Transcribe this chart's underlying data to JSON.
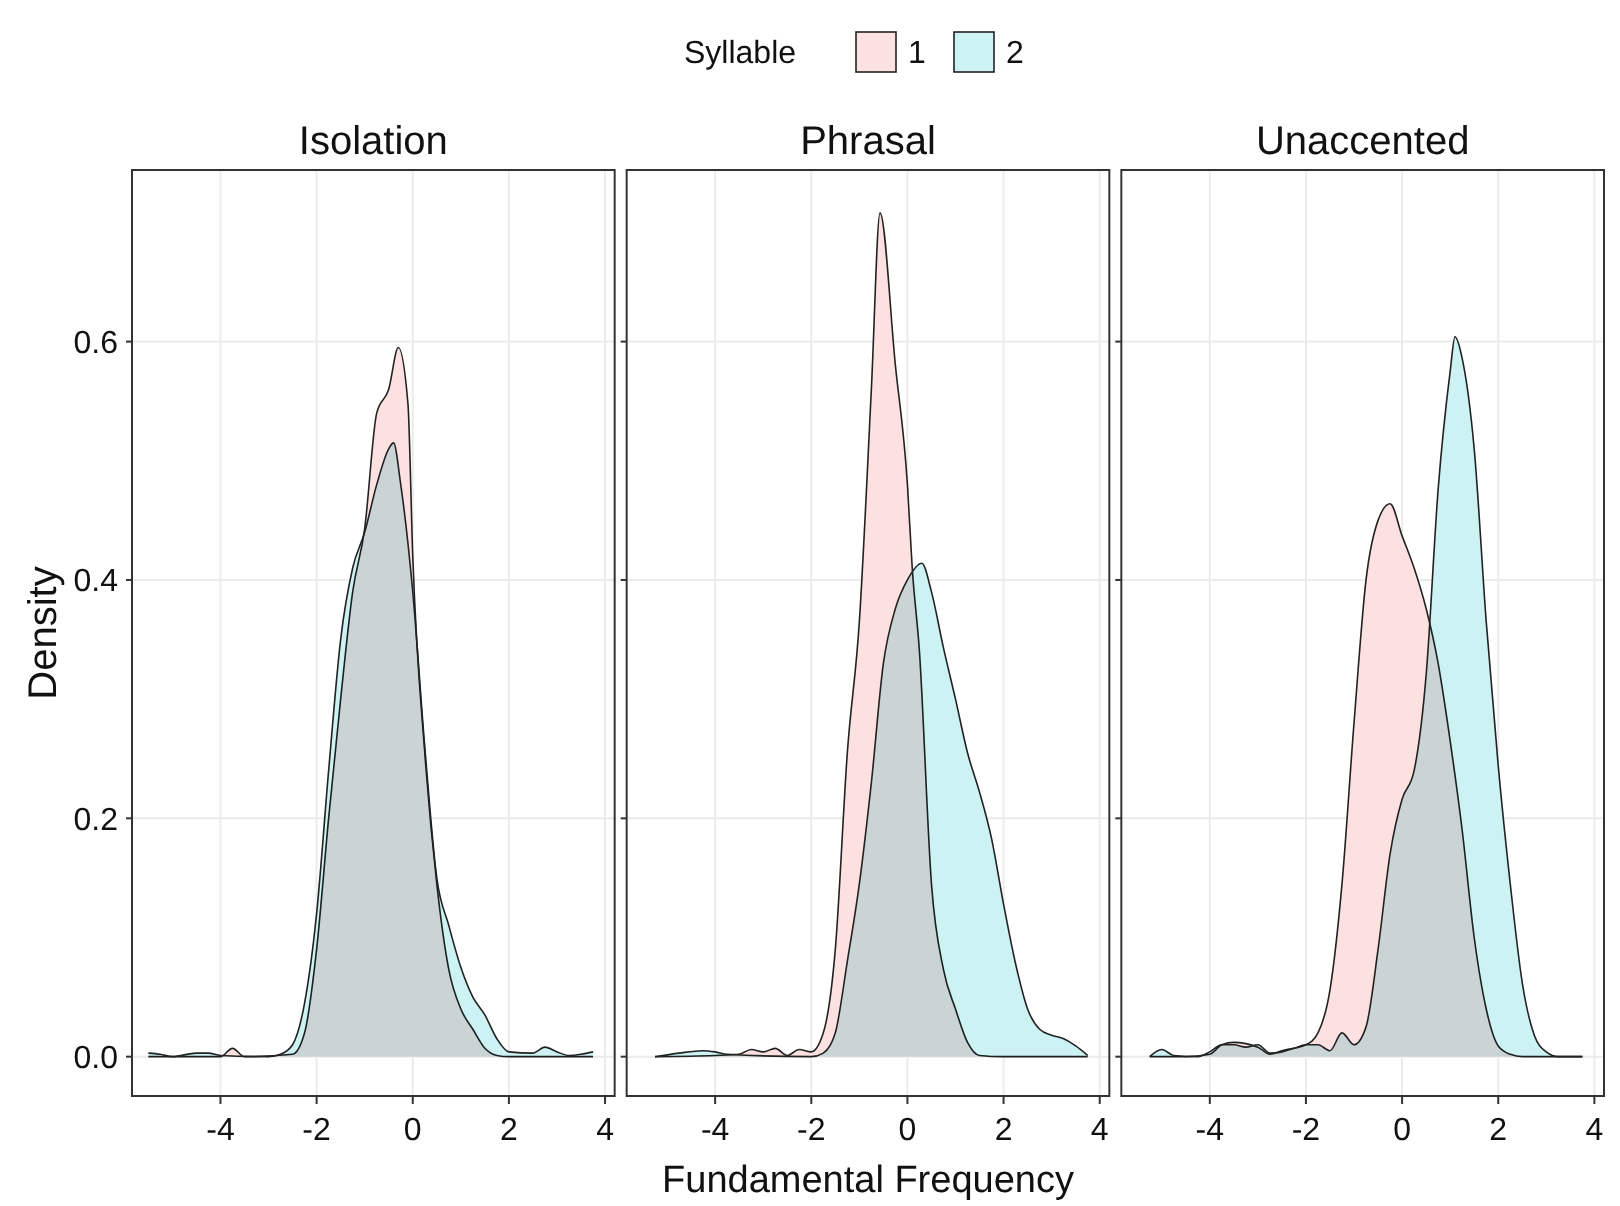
{
  "chart_data": [
    {
      "type": "area",
      "title": "Isolation",
      "ylabel": "Density",
      "legend_title": "Syllable",
      "legend": "top",
      "grid": true,
      "xlim": [
        -5.84,
        4.2
      ],
      "xticks": [
        -4,
        -2,
        0,
        2,
        4
      ],
      "ylim": [
        -0.033,
        0.744
      ],
      "yticks": [
        {
          "value": 0,
          "label": "0.0"
        },
        0.2,
        0.4,
        0.6
      ],
      "series": [
        {
          "name": "1",
          "color": "#fde0e0",
          "x": [
            -5.5,
            -4,
            -3.75,
            -3.5,
            -2.5,
            -2.25,
            -2,
            -1.75,
            -1.5,
            -1.25,
            -1,
            -0.75,
            -0.5,
            -0.3,
            -0.1,
            0,
            0.25,
            0.5,
            0.75,
            1,
            1.25,
            1.5,
            1.75,
            2,
            3.75
          ],
          "values": [
            0,
            0,
            0.007,
            0,
            0.002,
            0.02,
            0.09,
            0.2,
            0.3,
            0.39,
            0.443,
            0.54,
            0.56,
            0.595,
            0.548,
            0.42,
            0.255,
            0.145,
            0.073,
            0.04,
            0.023,
            0.007,
            0.001,
            0,
            0
          ]
        },
        {
          "name": "2",
          "color": "#ccf2f3",
          "x": [
            -5.5,
            -5.25,
            -5,
            -4.5,
            -4.25,
            -4,
            -3,
            -2.75,
            -2.5,
            -2.25,
            -2,
            -1.75,
            -1.5,
            -1.25,
            -1,
            -0.75,
            -0.5,
            -0.4,
            -0.25,
            0,
            0.25,
            0.5,
            0.75,
            1,
            1.25,
            1.5,
            1.75,
            2,
            2.5,
            2.75,
            3,
            3.25,
            3.5,
            3.75
          ],
          "values": [
            0.003,
            0.002,
            0,
            0.003,
            0.003,
            0.001,
            0,
            0.002,
            0.01,
            0.045,
            0.12,
            0.24,
            0.35,
            0.41,
            0.44,
            0.48,
            0.51,
            0.515,
            0.48,
            0.39,
            0.26,
            0.15,
            0.11,
            0.075,
            0.05,
            0.035,
            0.015,
            0.004,
            0.003,
            0.008,
            0.004,
            0.001,
            0.002,
            0.004
          ]
        }
      ]
    },
    {
      "type": "area",
      "title": "Phrasal",
      "xlabel": "Fundamental Frequency",
      "grid": true,
      "tick_labels": "x",
      "xlim": [
        -5.84,
        4.2
      ],
      "xticks": [
        -4,
        -2,
        0,
        2,
        4
      ],
      "ylim": [
        -0.033,
        0.744
      ],
      "yticks": [
        0,
        0.2,
        0.4,
        0.6
      ],
      "series": [
        {
          "color": "#fde0e0",
          "x": [
            -5.25,
            -4,
            -3.5,
            -3.25,
            -3,
            -2.75,
            -2.5,
            -2.25,
            -2,
            -1.75,
            -1.5,
            -1.25,
            -1,
            -0.75,
            -0.57,
            -0.25,
            0,
            0.1,
            0.25,
            0.5,
            0.75,
            1,
            1.25,
            1.5,
            2,
            3.75
          ],
          "values": [
            0,
            0.001,
            0.002,
            0.006,
            0.004,
            0.007,
            0.001,
            0.006,
            0.004,
            0.02,
            0.09,
            0.255,
            0.365,
            0.56,
            0.708,
            0.58,
            0.48,
            0.41,
            0.34,
            0.145,
            0.073,
            0.04,
            0.012,
            0.001,
            0,
            0
          ]
        },
        {
          "color": "#ccf2f3",
          "x": [
            -5.25,
            -4.75,
            -4.25,
            -4,
            -3.75,
            -2,
            -1.75,
            -1.5,
            -1.25,
            -1,
            -0.75,
            -0.5,
            -0.25,
            0,
            0.3,
            0.5,
            0.75,
            1,
            1.25,
            1.5,
            1.75,
            2,
            2.25,
            2.5,
            2.75,
            3,
            3.25,
            3.5,
            3.75
          ],
          "values": [
            0,
            0.003,
            0.005,
            0.004,
            0.002,
            0,
            0.003,
            0.02,
            0.08,
            0.145,
            0.23,
            0.33,
            0.376,
            0.4,
            0.414,
            0.39,
            0.343,
            0.3,
            0.255,
            0.222,
            0.183,
            0.128,
            0.078,
            0.04,
            0.023,
            0.018,
            0.015,
            0.009,
            0.001
          ]
        }
      ]
    },
    {
      "type": "area",
      "title": "Unaccented",
      "grid": true,
      "tick_labels": "x",
      "xlim": [
        -5.84,
        4.2
      ],
      "xticks": [
        -4,
        -2,
        0,
        2,
        4
      ],
      "ylim": [
        -0.033,
        0.744
      ],
      "yticks": [
        0,
        0.2,
        0.4,
        0.6
      ],
      "series": [
        {
          "color": "#fde0e0",
          "x": [
            -5.25,
            -4.5,
            -4,
            -3.75,
            -3.5,
            -3,
            -2.75,
            -2.5,
            -2,
            -1.75,
            -1.5,
            -1.25,
            -1,
            -0.75,
            -0.5,
            -0.25,
            0,
            0.25,
            0.5,
            0.75,
            1,
            1.25,
            1.5,
            1.75,
            2,
            2.25,
            2.5,
            3.75
          ],
          "values": [
            0,
            0,
            0.002,
            0.01,
            0.012,
            0.008,
            0.002,
            0.005,
            0.01,
            0.02,
            0.056,
            0.145,
            0.28,
            0.4,
            0.45,
            0.464,
            0.437,
            0.41,
            0.376,
            0.33,
            0.265,
            0.19,
            0.1,
            0.04,
            0.009,
            0.002,
            0,
            0
          ]
        },
        {
          "color": "#ccf2f3",
          "x": [
            -5.25,
            -5,
            -4.75,
            -4.25,
            -4,
            -3.75,
            -3.5,
            -3.25,
            -3,
            -2.75,
            -2.5,
            -2.25,
            -2,
            -1.75,
            -1.5,
            -1.25,
            -1,
            -0.75,
            -0.5,
            -0.25,
            0,
            0.25,
            0.5,
            0.75,
            1,
            1.1,
            1.25,
            1.5,
            1.75,
            2,
            2.25,
            2.5,
            2.75,
            3,
            3.25,
            3.75
          ],
          "values": [
            0,
            0.006,
            0.001,
            0,
            0.004,
            0.01,
            0.01,
            0.008,
            0.01,
            0.003,
            0.004,
            0.007,
            0.01,
            0.01,
            0.005,
            0.02,
            0.01,
            0.025,
            0.09,
            0.17,
            0.216,
            0.24,
            0.32,
            0.476,
            0.575,
            0.604,
            0.586,
            0.51,
            0.365,
            0.244,
            0.145,
            0.062,
            0.018,
            0.004,
            0,
            0
          ]
        }
      ]
    }
  ]
}
